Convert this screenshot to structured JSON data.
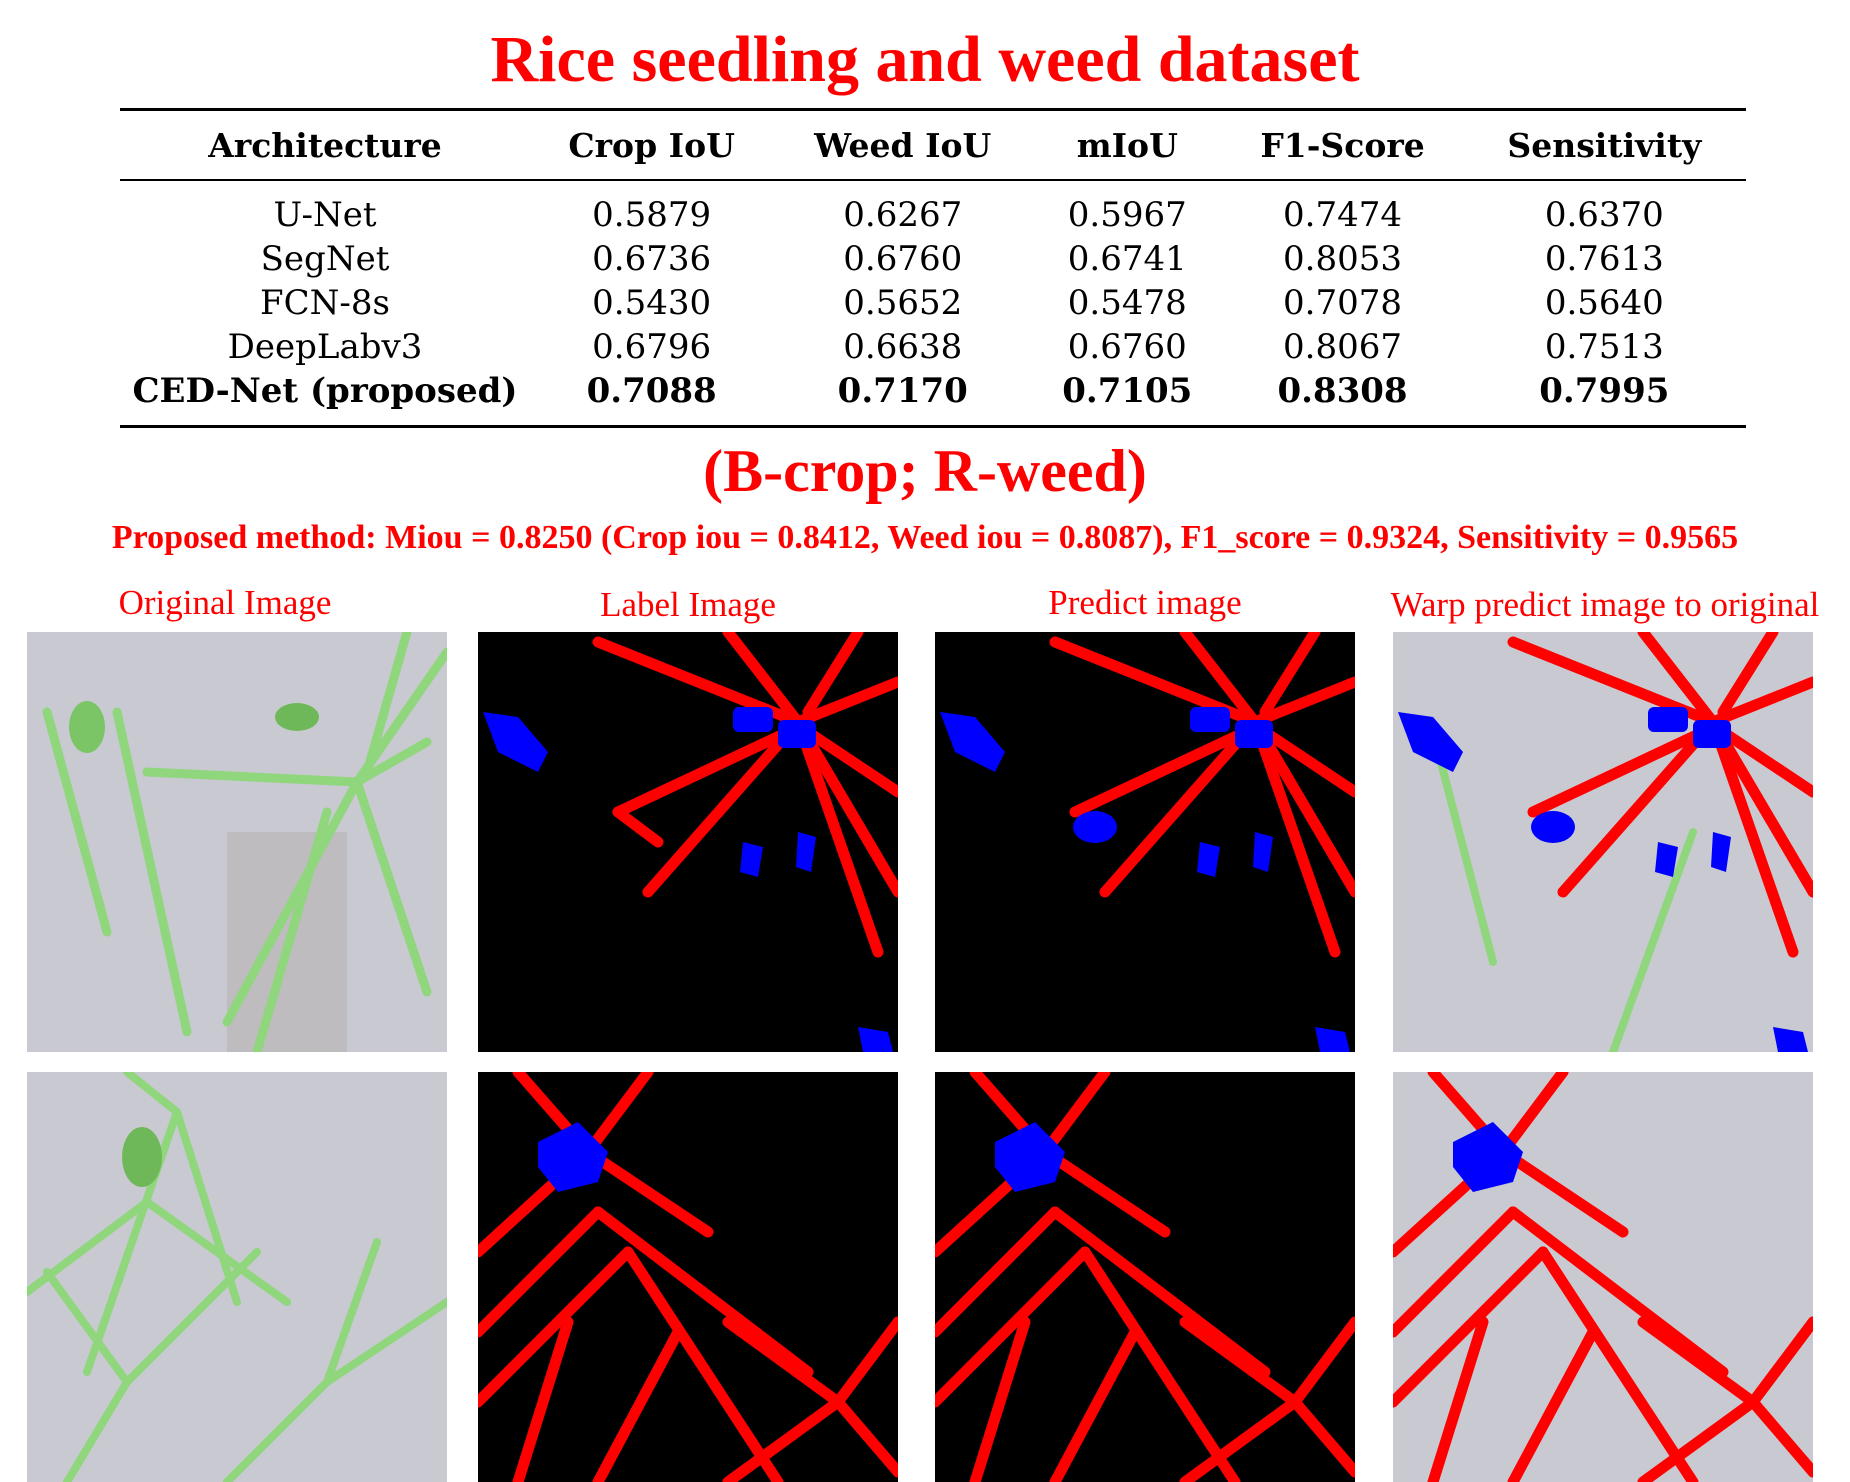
{
  "title": "Rice seedling and weed dataset",
  "table": {
    "headers": [
      "Architecture",
      "Crop IoU",
      "Weed IoU",
      "mIoU",
      "F1-Score",
      "Sensitivity"
    ],
    "rows": [
      [
        "U-Net",
        "0.5879",
        "0.6267",
        "0.5967",
        "0.7474",
        "0.6370"
      ],
      [
        "SegNet",
        "0.6736",
        "0.6760",
        "0.6741",
        "0.8053",
        "0.7613"
      ],
      [
        "FCN-8s",
        "0.5430",
        "0.5652",
        "0.5478",
        "0.7078",
        "0.5640"
      ],
      [
        "DeepLabv3",
        "0.6796",
        "0.6638",
        "0.6760",
        "0.8067",
        "0.7513"
      ],
      [
        "CED-Net (proposed)",
        "0.7088",
        "0.7170",
        "0.7105",
        "0.8308",
        "0.7995"
      ]
    ]
  },
  "subtitle": "(B-crop; R-weed)",
  "summary": "Proposed method: Miou = 0.8250 (Crop iou = 0.8412, Weed iou = 0.8087), F1_score = 0.9324, Sensitivity = 0.9565",
  "columns": {
    "original": "Original Image",
    "label": "Label Image",
    "predict": "Predict image",
    "warp": "Warp predict image to original"
  },
  "colors": {
    "accent": "#ff0000",
    "crop": "#0000ff",
    "weed": "#ff0000",
    "mask_background": "#000000",
    "field_background": "#c9c9d1",
    "seedling": "#8fd67d"
  }
}
